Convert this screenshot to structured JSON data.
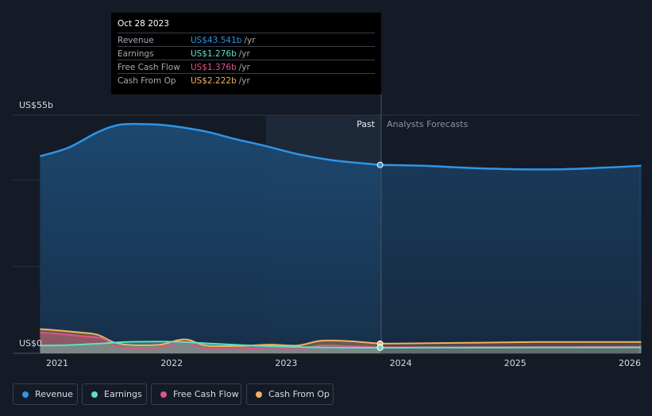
{
  "chart_data": {
    "type": "area",
    "y_axis": {
      "max_label": "US$55b",
      "min_label": "US$0",
      "ylim": [
        0,
        55
      ]
    },
    "x_ticks": [
      "2021",
      "2022",
      "2023",
      "2024",
      "2025",
      "2026"
    ],
    "past_label": "Past",
    "forecast_label": "Analysts Forecasts",
    "tooltip": {
      "date": "Oct 28 2023",
      "unit": "/yr",
      "rows": [
        {
          "label": "Revenue",
          "value": "US$43.541b",
          "color": "#2e95e8"
        },
        {
          "label": "Earnings",
          "value": "US$1.276b",
          "color": "#5ee0c6"
        },
        {
          "label": "Free Cash Flow",
          "value": "US$1.376b",
          "color": "#e0528a"
        },
        {
          "label": "Cash From Op",
          "value": "US$2.222b",
          "color": "#f2b15e"
        }
      ]
    },
    "series": [
      {
        "name": "Revenue",
        "color": "#2e95e8",
        "x": [
          2020.85,
          2021.1,
          2021.35,
          2021.55,
          2021.8,
          2022.0,
          2022.3,
          2022.55,
          2022.8,
          2023.1,
          2023.4,
          2023.82
        ],
        "y": [
          45.5,
          47.5,
          51.0,
          52.8,
          52.9,
          52.5,
          51.2,
          49.5,
          48.0,
          46.0,
          44.6,
          43.5
        ],
        "forecast_x": [
          2023.82,
          2024.2,
          2024.6,
          2025.0,
          2025.4,
          2025.8,
          2026.1
        ],
        "forecast_y": [
          43.5,
          43.3,
          42.8,
          42.5,
          42.5,
          42.9,
          43.3
        ]
      },
      {
        "name": "Earnings",
        "color": "#5ee0c6",
        "x": [
          2020.85,
          2021.1,
          2021.4,
          2021.6,
          2021.9,
          2022.1,
          2022.3,
          2022.6,
          2022.9,
          2023.2,
          2023.5,
          2023.82
        ],
        "y": [
          1.8,
          1.9,
          2.3,
          2.6,
          2.7,
          2.6,
          2.3,
          1.9,
          1.6,
          1.4,
          1.3,
          1.28
        ],
        "forecast_x": [
          2023.82,
          2024.5,
          2025.2,
          2026.1
        ],
        "forecast_y": [
          1.28,
          1.3,
          1.32,
          1.35
        ]
      },
      {
        "name": "Free Cash Flow",
        "color": "#e0528a",
        "x": [
          2020.85,
          2021.0,
          2021.2,
          2021.4,
          2021.55,
          2021.9,
          2022.05,
          2022.15,
          2022.3,
          2022.6,
          2022.9,
          2023.1,
          2023.3,
          2023.5,
          2023.82
        ],
        "y": [
          4.8,
          4.5,
          4.0,
          3.4,
          1.4,
          1.4,
          2.4,
          2.3,
          1.1,
          1.0,
          1.3,
          0.9,
          1.8,
          1.7,
          1.38
        ],
        "forecast_x": [
          2023.82,
          2024.5,
          2025.2,
          2026.1
        ],
        "forecast_y": [
          1.38,
          1.4,
          1.45,
          1.5
        ]
      },
      {
        "name": "Cash From Op",
        "color": "#f2b15e",
        "x": [
          2020.85,
          2021.0,
          2021.2,
          2021.35,
          2021.5,
          2021.65,
          2021.9,
          2022.05,
          2022.15,
          2022.3,
          2022.6,
          2022.85,
          2023.1,
          2023.3,
          2023.55,
          2023.82
        ],
        "y": [
          5.6,
          5.3,
          4.8,
          4.3,
          2.5,
          1.9,
          2.0,
          3.0,
          3.1,
          1.8,
          1.7,
          2.0,
          1.8,
          2.9,
          2.8,
          2.22
        ],
        "forecast_x": [
          2023.82,
          2024.5,
          2025.2,
          2026.1
        ],
        "forecast_y": [
          2.22,
          2.4,
          2.6,
          2.6
        ]
      }
    ]
  }
}
